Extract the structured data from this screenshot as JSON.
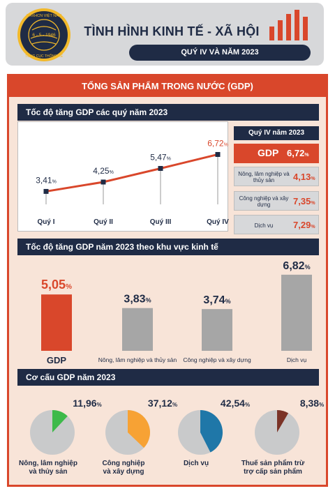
{
  "header": {
    "title": "TÌNH HÌNH KINH TẾ - XÃ HỘI",
    "subtitle": "QUÝ IV VÀ NĂM 2023",
    "logo_text_top": "CHXHCN VIỆT NAM",
    "logo_text_bottom": "TỔNG CỤC THỐNG KÊ",
    "logo_date": "6 - 5 - 1946"
  },
  "colors": {
    "navy": "#1f2b45",
    "red": "#d9472b",
    "gray": "#a6a6a6",
    "green": "#3dba4a",
    "orange": "#f7a234",
    "blue": "#1f77a8",
    "brown": "#7b3327",
    "panel": "#f8e4d8"
  },
  "banner": "TỔNG SẢN PHẨM TRONG NƯỚC (GDP)",
  "sections": {
    "quarterly": "Tốc độ tăng GDP các quý năm 2023",
    "by_sector": "Tốc độ tăng GDP năm 2023 theo khu vực kinh tế",
    "structure": "Cơ cấu GDP năm 2023"
  },
  "q4_panel": {
    "heading": "Quý IV năm 2023",
    "gdp_label": "GDP",
    "gdp_value": "6,72",
    "sectors": [
      {
        "label": "Nông, lâm nghiệp và thủy sản",
        "value": "4,13"
      },
      {
        "label": "Công nghiệp và xây dựng",
        "value": "7,35"
      },
      {
        "label": "Dịch vụ",
        "value": "7,29"
      }
    ]
  },
  "pct_sign": "%",
  "chart_data": [
    {
      "type": "line",
      "categories": [
        "Quý I",
        "Quý II",
        "Quý III",
        "Quý IV"
      ],
      "values": [
        3.41,
        4.25,
        5.47,
        6.72
      ],
      "labels": [
        "3,41",
        "4,25",
        "5,47",
        "6,72"
      ],
      "title": "Tốc độ tăng GDP các quý năm 2023",
      "grid": false
    },
    {
      "type": "bar",
      "categories": [
        "GDP",
        "Nông, lâm nghiệp và thủy sản",
        "Công nghiệp và xây dựng",
        "Dịch vụ"
      ],
      "values": [
        5.05,
        3.83,
        3.74,
        6.82
      ],
      "labels": [
        "5,05",
        "3,83",
        "3,74",
        "6,82"
      ],
      "title": "Tốc độ tăng GDP năm 2023 theo khu vực kinh tế",
      "grid": false
    },
    {
      "type": "pie",
      "categories": [
        "Nông, lâm nghiệp và thủy sản",
        "Công nghiệp và xây dựng",
        "Dịch vụ",
        "Thuế sản phẩm trừ trợ cấp sản phẩm"
      ],
      "values": [
        11.96,
        37.12,
        42.54,
        8.38
      ],
      "labels": [
        "11,96",
        "37,12",
        "42,54",
        "8,38"
      ],
      "title": "Cơ cấu GDP năm 2023"
    }
  ]
}
